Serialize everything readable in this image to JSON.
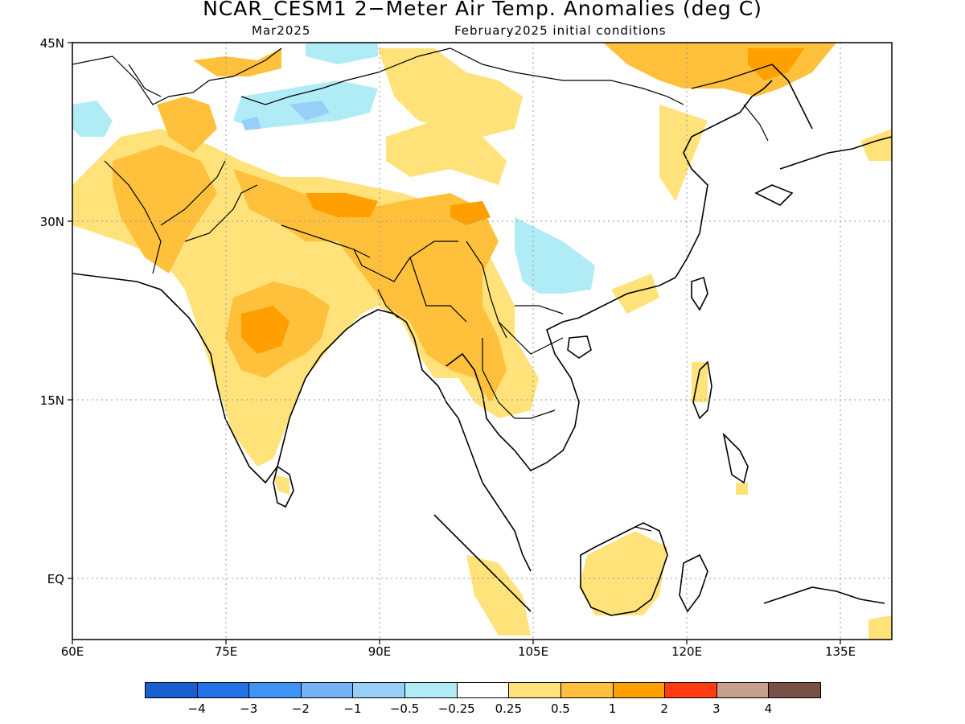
{
  "header": {
    "title": "NCAR_CESM1 2−Meter Air Temp. Anomalies (deg C)",
    "forecast_month": "Mar2025",
    "initial_conditions": "February2025 initial conditions"
  },
  "map": {
    "projection": "lat-lon",
    "lon_range": [
      60,
      140
    ],
    "lat_range": [
      -6,
      45
    ],
    "lat_ticks": [
      "45N",
      "30N",
      "15N",
      "EQ"
    ],
    "lon_ticks": [
      "60E",
      "75E",
      "90E",
      "105E",
      "120E",
      "135E"
    ],
    "gridlines": "dotted",
    "coastlines": true,
    "country_borders": true
  },
  "legend": {
    "colors": [
      "#1a5fd0",
      "#2472e8",
      "#3d94f4",
      "#75b3f6",
      "#97cff8",
      "#b0ecf6",
      "#ffffff",
      "#ffe27a",
      "#ffc03c",
      "#ffa000",
      "#ff3b12",
      "#c9a090",
      "#7a5046"
    ],
    "labels": [
      "−4",
      "−3",
      "−2",
      "−1",
      "−0.5",
      "−0.25",
      "0.25",
      "0.5",
      "1",
      "2",
      "3",
      "4"
    ]
  }
}
